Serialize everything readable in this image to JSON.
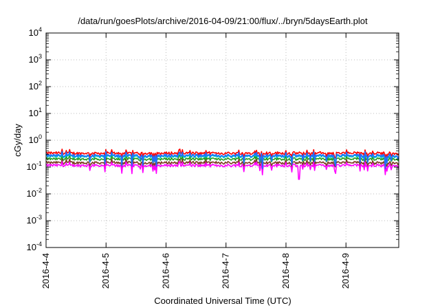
{
  "chart_data": {
    "type": "line",
    "title": "/data/run/goesPlots/archive/2016-04-09/21:00/flux/../bryn/5daysEarth.plot",
    "xlabel": "Coordinated Universal Time (UTC)",
    "ylabel": "cGy/day",
    "yscale": "log",
    "ylim": [
      0.0001,
      10000
    ],
    "y_ticks": [
      {
        "exp": "-4",
        "value": 0.0001
      },
      {
        "exp": "-3",
        "value": 0.001
      },
      {
        "exp": "-2",
        "value": 0.01
      },
      {
        "exp": "-1",
        "value": 0.1
      },
      {
        "exp": "0",
        "value": 1
      },
      {
        "exp": "1",
        "value": 10
      },
      {
        "exp": "2",
        "value": 100
      },
      {
        "exp": "3",
        "value": 1000
      },
      {
        "exp": "4",
        "value": 10000
      }
    ],
    "y_tick_base": "10",
    "x_ticks": [
      "2016-4-4",
      "2016-4-5",
      "2016-4-6",
      "2016-4-7",
      "2016-4-8",
      "2016-4-9"
    ],
    "xlim_days": [
      0,
      5.88
    ],
    "grid": true,
    "series": [
      {
        "color": "#ff0000",
        "level": 0.33,
        "dip_depth": 0.35
      },
      {
        "color": "#1f9e1f",
        "level": 0.2,
        "dip_depth": 0.3
      },
      {
        "color": "#00c8c8",
        "level": 0.25,
        "dip_depth": 0.3
      },
      {
        "color": "#7a3b1f",
        "level": 0.145,
        "dip_depth": 0.3
      },
      {
        "color": "#ff00ff",
        "level": 0.115,
        "dip_depth": 0.45
      },
      {
        "color": "#1f6fff",
        "level": 0.27,
        "dip_depth": 0.55
      }
    ]
  }
}
